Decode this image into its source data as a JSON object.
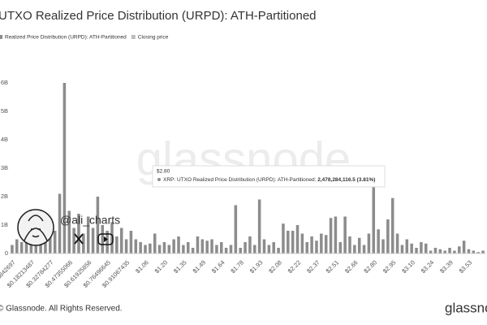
{
  "chart_data": {
    "type": "bar",
    "title": "UTXO Realized Price Distribution (URPD): ATH-Partitioned",
    "series": [
      {
        "name": "Realized Price Distribution (URPD): ATH-Partitioned",
        "color": "#8c8c8c",
        "values": [
          300000000,
          500000000,
          400000000,
          600000000,
          500000000,
          700000000,
          900000000,
          600000000,
          1100000000,
          800000000,
          2100000000,
          6000000000,
          1500000000,
          900000000,
          1400000000,
          700000000,
          1300000000,
          900000000,
          2000000000,
          1000000000,
          800000000,
          1100000000,
          600000000,
          900000000,
          500000000,
          800000000,
          500000000,
          400000000,
          300000000,
          350000000,
          700000000,
          300000000,
          400000000,
          300000000,
          500000000,
          600000000,
          300000000,
          400000000,
          200000000,
          600000000,
          500000000,
          450000000,
          500000000,
          300000000,
          400000000,
          200000000,
          300000000,
          1700000000,
          200000000,
          400000000,
          600000000,
          300000000,
          1900000000,
          500000000,
          300000000,
          400000000,
          200000000,
          1050000000,
          800000000,
          800000000,
          1000000000,
          700000000,
          400000000,
          600000000,
          450000000,
          700000000,
          650000000,
          1250000000,
          1300000000,
          400000000,
          1300000000,
          600000000,
          300000000,
          550000000,
          300000000,
          700000000,
          2478284116.5,
          850000000,
          500000000,
          1200000000,
          1950000000,
          700000000,
          300000000,
          500000000,
          350000000,
          200000000,
          400000000,
          350000000,
          100000000,
          200000000,
          150000000,
          100000000,
          200000000,
          100000000,
          250000000,
          450000000,
          150000000,
          100000000,
          50000000,
          100000000
        ]
      },
      {
        "name": "Closing price",
        "color": "#bbbbbb"
      }
    ],
    "categories": [
      "$0.03842697",
      null,
      null,
      null,
      "$0.18213487",
      null,
      null,
      null,
      "$0.32784277",
      null,
      null,
      null,
      "$0.47355066",
      null,
      null,
      null,
      "$0.61925856",
      null,
      null,
      null,
      "$0.76496645",
      null,
      null,
      null,
      "$0.91067435",
      null,
      null,
      null,
      "$1.06",
      null,
      null,
      null,
      "$1.20",
      null,
      null,
      null,
      "$1.35",
      null,
      null,
      null,
      "$1.49",
      null,
      null,
      null,
      "$1.64",
      null,
      null,
      null,
      "$1.78",
      null,
      null,
      null,
      "$1.93",
      null,
      null,
      null,
      "$2.08",
      null,
      null,
      null,
      "$2.22",
      null,
      null,
      null,
      "$2.37",
      null,
      null,
      null,
      "$2.51",
      null,
      null,
      null,
      "$2.66",
      null,
      null,
      null,
      "$2.80",
      null,
      null,
      null,
      "$2.95",
      null,
      null,
      null,
      "$3.10",
      null,
      null,
      null,
      "$3.24",
      null,
      null,
      null,
      "$3.39",
      null,
      null,
      null,
      "$3.53",
      null,
      null,
      null
    ],
    "ylim": [
      0,
      6300000000
    ],
    "yticks": [
      {
        "value": 0,
        "label": "0"
      },
      {
        "value": 1000000000,
        "label": "1B"
      },
      {
        "value": 2000000000,
        "label": "2B"
      },
      {
        "value": 3000000000,
        "label": "3B"
      },
      {
        "value": 4000000000,
        "label": "4B"
      },
      {
        "value": 5000000000,
        "label": "5B"
      },
      {
        "value": 6000000000,
        "label": "6B"
      }
    ],
    "grid": false,
    "tooltip": {
      "title": "$2.80",
      "series": "XRP: UTXO Realized Price Distribution (URPD): ATH-Partitioned:",
      "value_label": "2,478,284,116.5 (3.81%)"
    },
    "watermark": "glassnode",
    "author": "@ali_charts",
    "footer": "© Glassnode. All Rights Reserved.",
    "logo": "glassnode"
  }
}
